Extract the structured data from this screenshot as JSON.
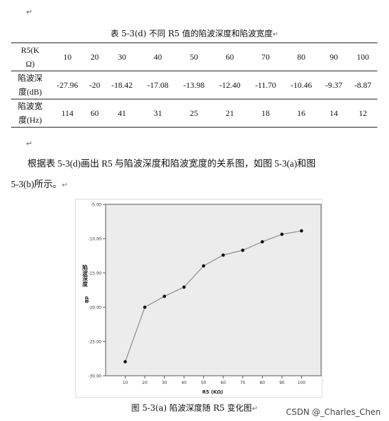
{
  "marks": {
    "return": "↵"
  },
  "table": {
    "caption": "表 5-3(d)  不同 R5 值的陷波深度和陷波宽度",
    "header": {
      "label_line1": "R5(K",
      "label_line2": "Ω)",
      "values": [
        "10",
        "20",
        "30",
        "40",
        "50",
        "60",
        "70",
        "80",
        "90",
        "100"
      ]
    },
    "rows": [
      {
        "label_line1": "陷波深",
        "label_line2": "度(dB)",
        "values": [
          "-27.96",
          "-20",
          "-18.42",
          "-17.08",
          "-13.98",
          "-12.40",
          "-11.70",
          "-10.46",
          "-9.37",
          "-8.87"
        ]
      },
      {
        "label_line1": "陷波宽",
        "label_line2": "度(Hz)",
        "values": [
          "114",
          "60",
          "41",
          "31",
          "25",
          "21",
          "18",
          "16",
          "14",
          "12"
        ]
      }
    ]
  },
  "paragraph": {
    "line1": "根据表 5-3(d)画出 R5 与陷波深度和陷波宽度的关系图，如图 5-3(a)和图",
    "line2": "5-3(b)所示。"
  },
  "chart_data": {
    "type": "line",
    "x": [
      10,
      20,
      30,
      40,
      50,
      60,
      70,
      80,
      90,
      100
    ],
    "y": [
      -27.96,
      -20,
      -18.42,
      -17.08,
      -13.98,
      -12.4,
      -11.7,
      -10.46,
      -9.37,
      -8.87
    ],
    "xlabel": "R5 (KΩ)",
    "ylabel": "陷波深度",
    "ylabel_extra": "dB",
    "xlim": [
      0,
      110
    ],
    "ylim": [
      -30,
      -5
    ],
    "xticks": [
      "10",
      "20",
      "30",
      "40",
      "50",
      "60",
      "70",
      "80",
      "90",
      "100"
    ],
    "yticks": [
      "-5.00",
      "-10.00",
      "-15.00",
      "-20.00",
      "-25.00",
      "-30.00"
    ],
    "grid": false,
    "colors": {
      "plot_bg": "#ececec",
      "line": "#8a8a8a",
      "marker": "#111111"
    }
  },
  "figure_caption": "图 5-3(a) 陷波深度随 R5 变化图",
  "watermark": "CSDN @_Charles_Chen"
}
